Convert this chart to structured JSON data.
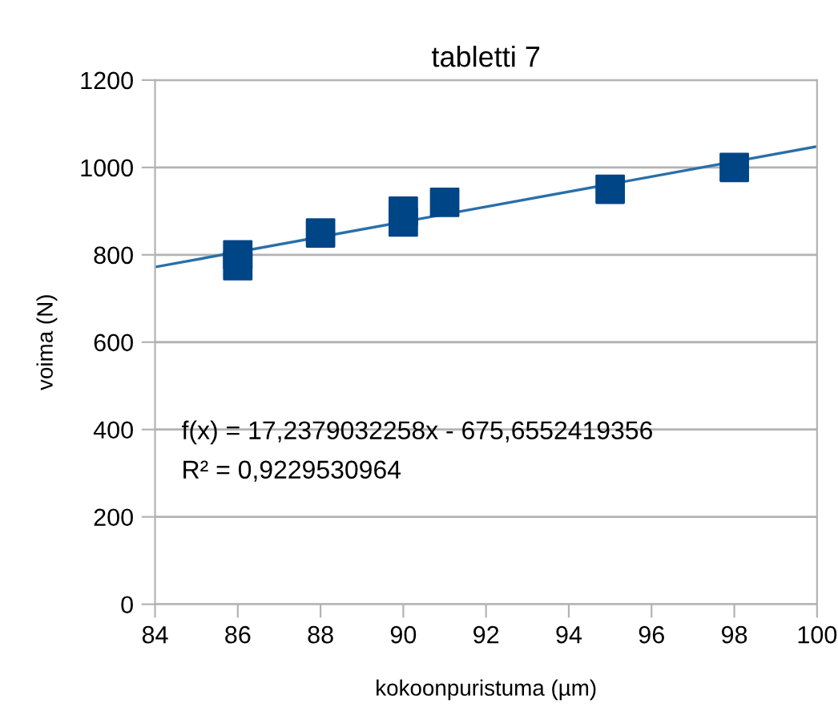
{
  "chart_data": {
    "type": "scatter",
    "title": "tabletti 7",
    "xlabel": "kokoonpuristuma (µm)",
    "ylabel": "voima (N)",
    "xlim": [
      84,
      100
    ],
    "xticks": [
      84,
      86,
      88,
      90,
      92,
      94,
      96,
      98,
      100
    ],
    "ylim": [
      0,
      1200
    ],
    "yticks": [
      0,
      200,
      400,
      600,
      800,
      1000,
      1200
    ],
    "grid": "y",
    "series": [
      {
        "marker": "square",
        "color": "#004586",
        "x": [
          86,
          86,
          88,
          90,
          90,
          91,
          95,
          98
        ],
        "values": [
          800,
          775,
          850,
          900,
          875,
          920,
          950,
          1000
        ]
      },
      {
        "type": "line",
        "marker": "none",
        "color": "#2a6fa8",
        "x": [
          84,
          100
        ],
        "values": [
          772,
          1048
        ]
      }
    ],
    "annotations": [
      "f(x) = 17,2379032258x - 675,6552419356",
      "R² = 0,9229530964"
    ]
  }
}
